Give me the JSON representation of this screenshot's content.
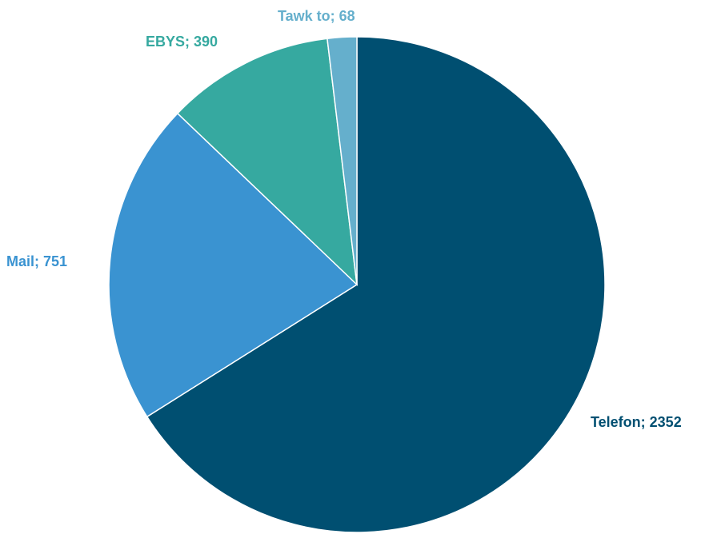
{
  "chart_data": {
    "type": "pie",
    "title": "",
    "slices": [
      {
        "name": "Telefon",
        "value": 2352,
        "label": "Telefon; 2352",
        "color": "#004f71"
      },
      {
        "name": "Mail",
        "value": 751,
        "label": "Mail; 751",
        "color": "#3a93d1"
      },
      {
        "name": "EBYS",
        "value": 390,
        "label": "EBYS; 390",
        "color": "#36a9a0"
      },
      {
        "name": "Tawk to",
        "value": 68,
        "label": "Tawk to; 68",
        "color": "#65afcc"
      }
    ],
    "start_angle": "12 o'clock",
    "direction": "clockwise",
    "legend": "none",
    "data_labels": "outside, category; value"
  }
}
